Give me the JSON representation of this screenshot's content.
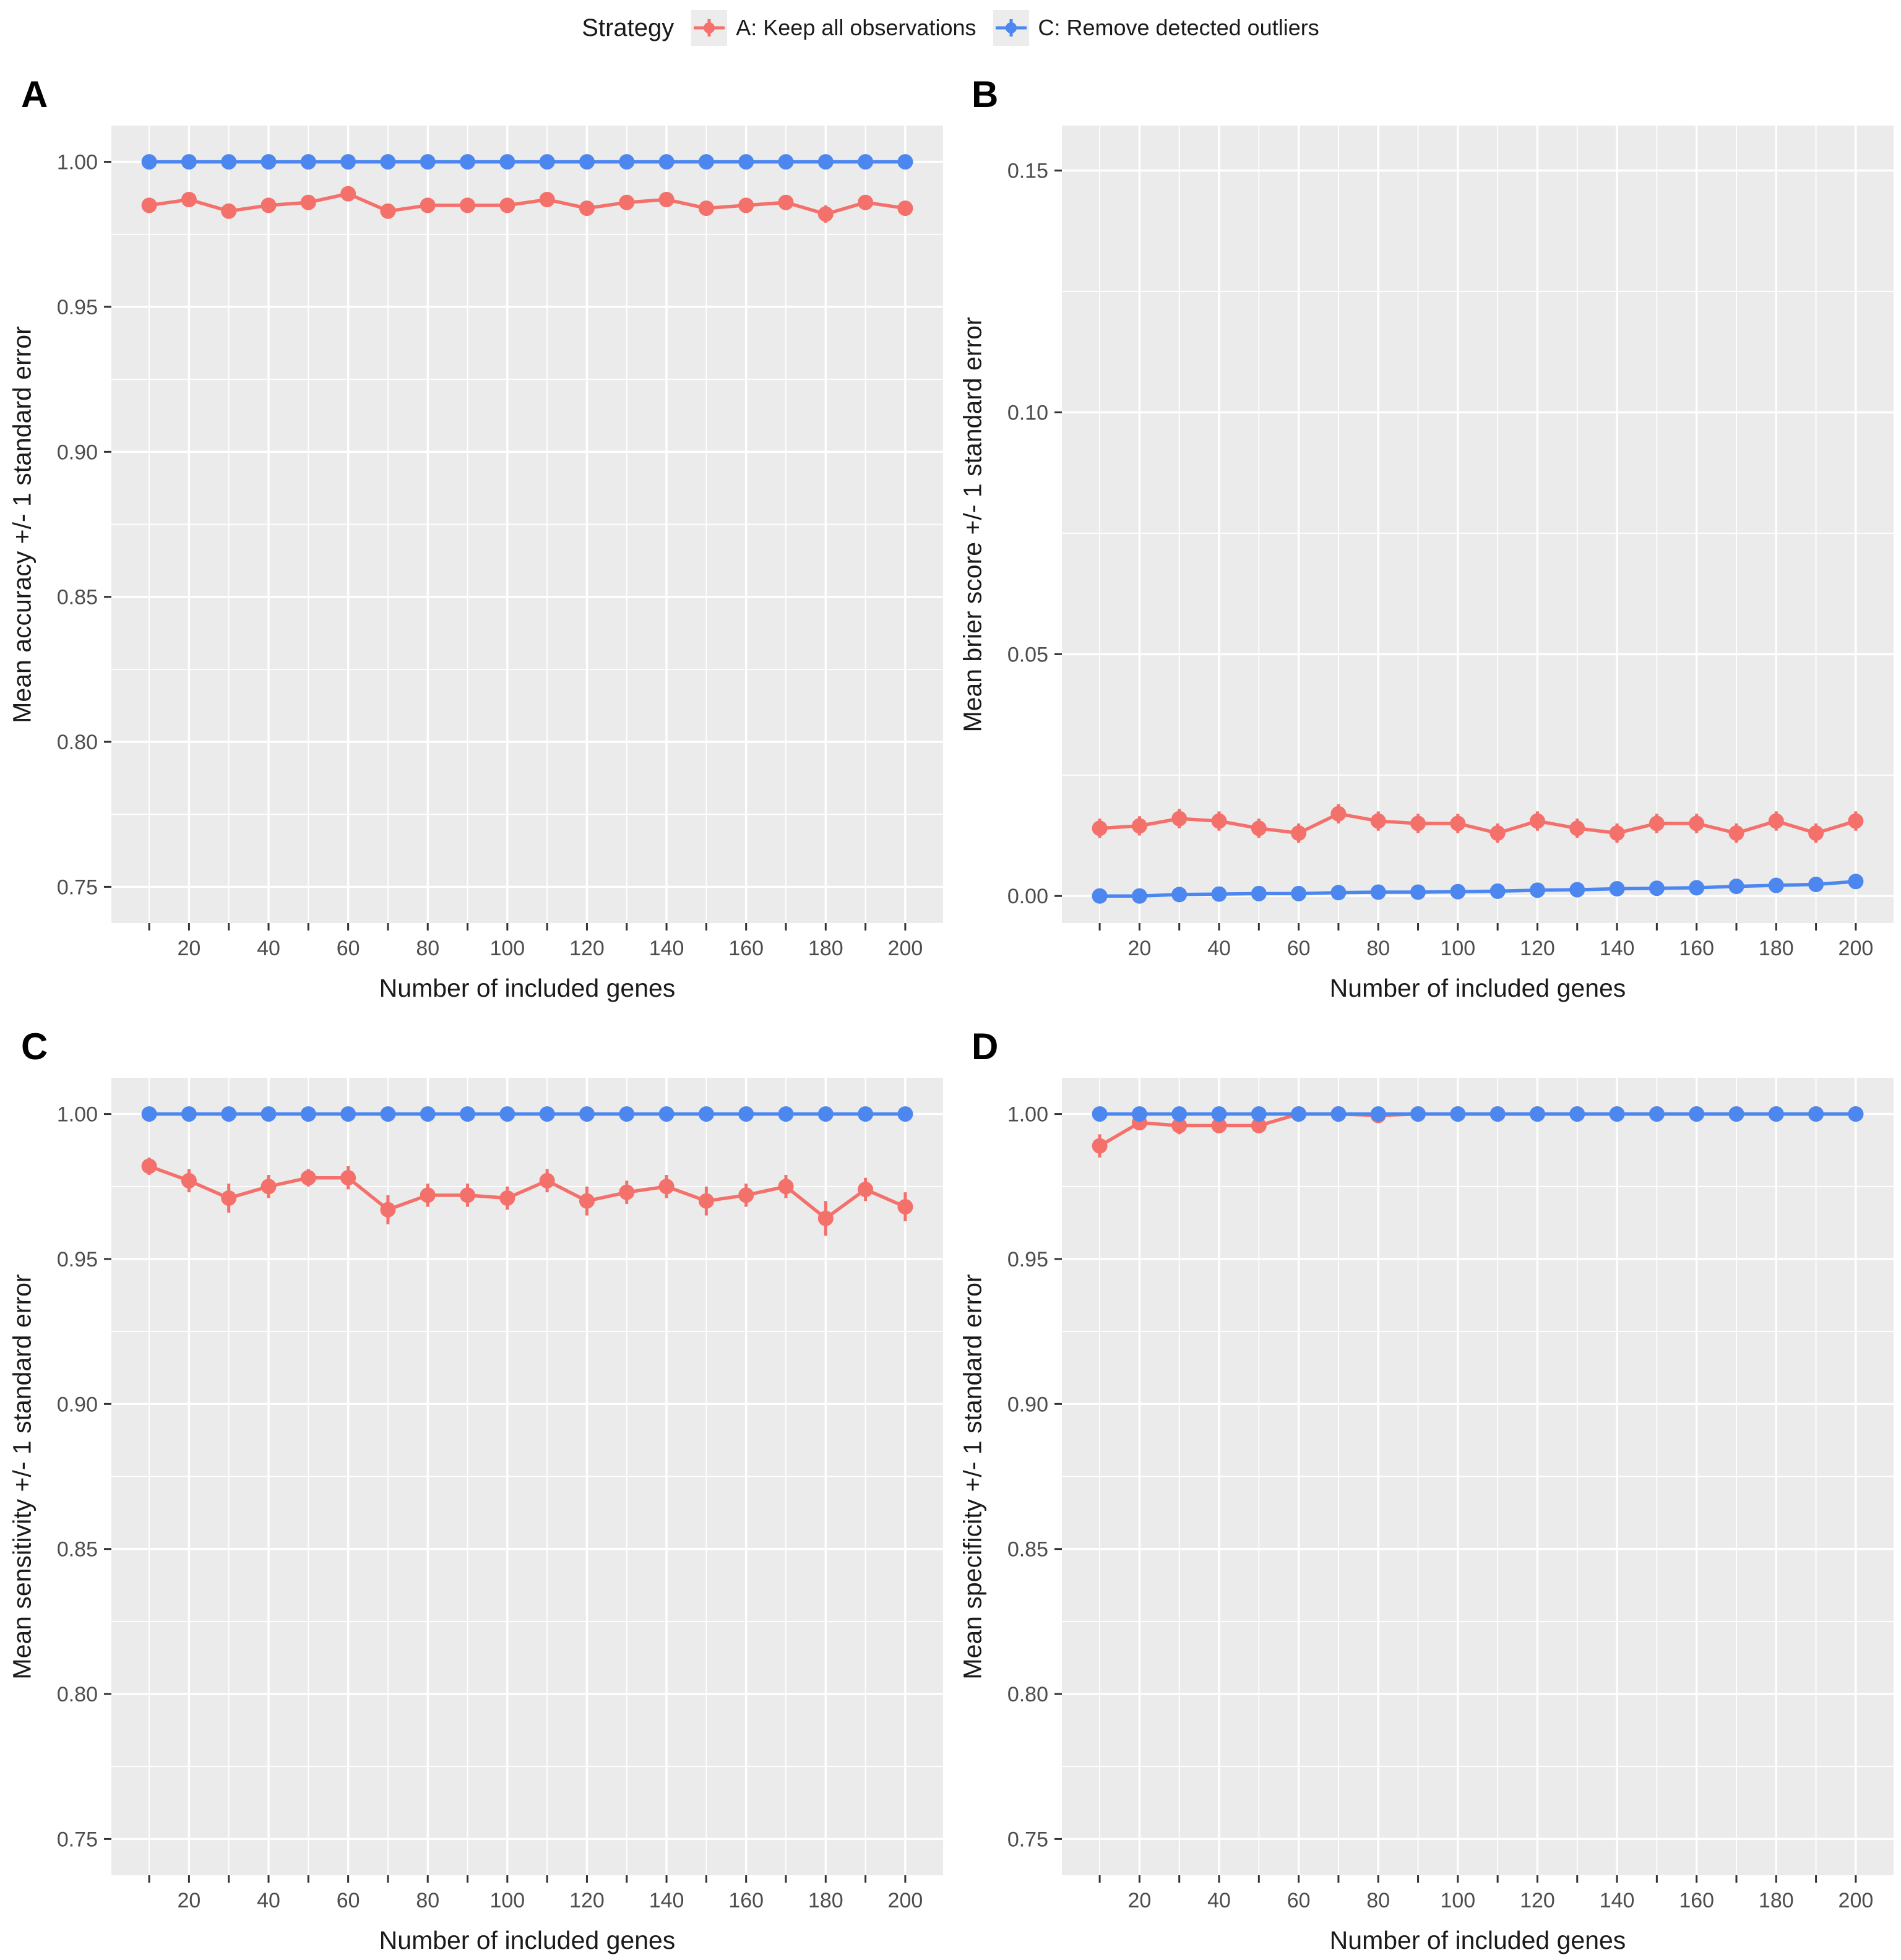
{
  "legend": {
    "title": "Strategy",
    "items": [
      {
        "label": "A: Keep all observations",
        "color": "#F4706B"
      },
      {
        "label": "C: Remove detected outliers",
        "color": "#4C87F0"
      }
    ]
  },
  "colors": {
    "panel_bg": "#EBEBEB",
    "grid": "#FFFFFF",
    "tick": "#333333",
    "tick_label": "#4D4D4D",
    "legend_key_bg": "#ECECEC"
  },
  "chart_data": [
    {
      "type": "line",
      "letter": "A",
      "ylabel": "Mean accuracy +/- 1 standard error",
      "xlabel": "Number of included genes",
      "x": [
        10,
        20,
        30,
        40,
        50,
        60,
        70,
        80,
        90,
        100,
        110,
        120,
        130,
        140,
        150,
        160,
        170,
        180,
        190,
        200
      ],
      "xlim": [
        0.5,
        209.5
      ],
      "ylim": [
        0.7375,
        1.0125
      ],
      "xticks_all": [
        10,
        20,
        30,
        40,
        50,
        60,
        70,
        80,
        90,
        100,
        110,
        120,
        130,
        140,
        150,
        160,
        170,
        180,
        190,
        200
      ],
      "xticks_major": [
        20,
        40,
        60,
        80,
        100,
        120,
        140,
        160,
        180,
        200
      ],
      "xtick_labels": [
        "20",
        "40",
        "60",
        "80",
        "100",
        "120",
        "140",
        "160",
        "180",
        "200"
      ],
      "xticks_minor": [
        10,
        30,
        50,
        70,
        90,
        110,
        130,
        150,
        170,
        190
      ],
      "yticks": {
        "values": [
          0.75,
          0.8,
          0.85,
          0.9,
          0.95,
          1.0
        ],
        "labels": [
          "0.75",
          "0.80",
          "0.85",
          "0.90",
          "0.95",
          "1.00"
        ]
      },
      "yticks_minor": [
        0.775,
        0.825,
        0.875,
        0.925,
        0.975
      ],
      "series": [
        {
          "name": "A: Keep all observations",
          "color": "#F4706B",
          "values": [
            0.985,
            0.987,
            0.983,
            0.985,
            0.986,
            0.989,
            0.983,
            0.985,
            0.985,
            0.985,
            0.987,
            0.984,
            0.986,
            0.987,
            0.984,
            0.985,
            0.986,
            0.982,
            0.986,
            0.984
          ],
          "se": [
            0.002,
            0.002,
            0.002,
            0.002,
            0.002,
            0.002,
            0.002,
            0.002,
            0.002,
            0.002,
            0.002,
            0.002,
            0.002,
            0.002,
            0.002,
            0.002,
            0.002,
            0.003,
            0.002,
            0.002
          ]
        },
        {
          "name": "C: Remove detected outliers",
          "color": "#4C87F0",
          "values": [
            1.0,
            1.0,
            1.0,
            1.0,
            1.0,
            1.0,
            1.0,
            1.0,
            1.0,
            1.0,
            1.0,
            1.0,
            1.0,
            1.0,
            1.0,
            1.0,
            1.0,
            1.0,
            1.0,
            1.0
          ],
          "se": [
            0.001,
            0.001,
            0.001,
            0.001,
            0.001,
            0.001,
            0.001,
            0.001,
            0.001,
            0.001,
            0.001,
            0.001,
            0.001,
            0.001,
            0.001,
            0.001,
            0.001,
            0.001,
            0.001,
            0.001
          ]
        }
      ]
    },
    {
      "type": "line",
      "letter": "B",
      "ylabel": "Mean brier score +/- 1 standard error",
      "xlabel": "Number of included genes",
      "x": [
        10,
        20,
        30,
        40,
        50,
        60,
        70,
        80,
        90,
        100,
        110,
        120,
        130,
        140,
        150,
        160,
        170,
        180,
        190,
        200
      ],
      "xlim": [
        0.5,
        209.5
      ],
      "ylim": [
        -0.0056,
        0.1593
      ],
      "xticks_all": [
        10,
        20,
        30,
        40,
        50,
        60,
        70,
        80,
        90,
        100,
        110,
        120,
        130,
        140,
        150,
        160,
        170,
        180,
        190,
        200
      ],
      "xticks_major": [
        20,
        40,
        60,
        80,
        100,
        120,
        140,
        160,
        180,
        200
      ],
      "xtick_labels": [
        "20",
        "40",
        "60",
        "80",
        "100",
        "120",
        "140",
        "160",
        "180",
        "200"
      ],
      "xticks_minor": [
        10,
        30,
        50,
        70,
        90,
        110,
        130,
        150,
        170,
        190
      ],
      "yticks": {
        "values": [
          0.0,
          0.05,
          0.1,
          0.15
        ],
        "labels": [
          "0.00",
          "0.05",
          "0.10",
          "0.15"
        ]
      },
      "yticks_minor": [
        0.025,
        0.075,
        0.125
      ],
      "series": [
        {
          "name": "A: Keep all observations",
          "color": "#F4706B",
          "values": [
            0.014,
            0.0145,
            0.016,
            0.0155,
            0.014,
            0.013,
            0.017,
            0.0155,
            0.015,
            0.015,
            0.013,
            0.0155,
            0.014,
            0.013,
            0.015,
            0.015,
            0.013,
            0.0155,
            0.013,
            0.0155
          ],
          "se": [
            0.002,
            0.002,
            0.002,
            0.002,
            0.002,
            0.002,
            0.002,
            0.002,
            0.002,
            0.002,
            0.002,
            0.002,
            0.002,
            0.002,
            0.002,
            0.002,
            0.002,
            0.002,
            0.002,
            0.002
          ]
        },
        {
          "name": "C: Remove detected outliers",
          "color": "#4C87F0",
          "values": [
            0.0,
            0.0,
            0.0003,
            0.0004,
            0.0005,
            0.0005,
            0.0007,
            0.0008,
            0.0008,
            0.0009,
            0.001,
            0.0012,
            0.0013,
            0.0015,
            0.0016,
            0.0017,
            0.002,
            0.0022,
            0.0024,
            0.003
          ],
          "se": [
            0.0005,
            0.0005,
            0.0005,
            0.0005,
            0.0005,
            0.0005,
            0.0005,
            0.0005,
            0.0005,
            0.0005,
            0.0005,
            0.0005,
            0.0005,
            0.0005,
            0.0005,
            0.0005,
            0.0005,
            0.0005,
            0.0005,
            0.0005
          ]
        }
      ]
    },
    {
      "type": "line",
      "letter": "C",
      "ylabel": "Mean sensitivity +/- 1 standard error",
      "xlabel": "Number of included genes",
      "x": [
        10,
        20,
        30,
        40,
        50,
        60,
        70,
        80,
        90,
        100,
        110,
        120,
        130,
        140,
        150,
        160,
        170,
        180,
        190,
        200
      ],
      "xlim": [
        0.5,
        209.5
      ],
      "ylim": [
        0.7375,
        1.0125
      ],
      "xticks_all": [
        10,
        20,
        30,
        40,
        50,
        60,
        70,
        80,
        90,
        100,
        110,
        120,
        130,
        140,
        150,
        160,
        170,
        180,
        190,
        200
      ],
      "xticks_major": [
        20,
        40,
        60,
        80,
        100,
        120,
        140,
        160,
        180,
        200
      ],
      "xtick_labels": [
        "20",
        "40",
        "60",
        "80",
        "100",
        "120",
        "140",
        "160",
        "180",
        "200"
      ],
      "xticks_minor": [
        10,
        30,
        50,
        70,
        90,
        110,
        130,
        150,
        170,
        190
      ],
      "yticks": {
        "values": [
          0.75,
          0.8,
          0.85,
          0.9,
          0.95,
          1.0
        ],
        "labels": [
          "0.75",
          "0.80",
          "0.85",
          "0.90",
          "0.95",
          "1.00"
        ]
      },
      "yticks_minor": [
        0.775,
        0.825,
        0.875,
        0.925,
        0.975
      ],
      "series": [
        {
          "name": "A: Keep all observations",
          "color": "#F4706B",
          "values": [
            0.982,
            0.977,
            0.971,
            0.975,
            0.978,
            0.978,
            0.967,
            0.972,
            0.972,
            0.971,
            0.977,
            0.97,
            0.973,
            0.975,
            0.97,
            0.972,
            0.975,
            0.964,
            0.974,
            0.968
          ],
          "se": [
            0.003,
            0.004,
            0.005,
            0.004,
            0.003,
            0.004,
            0.005,
            0.004,
            0.004,
            0.004,
            0.004,
            0.005,
            0.004,
            0.004,
            0.005,
            0.004,
            0.004,
            0.006,
            0.004,
            0.005
          ]
        },
        {
          "name": "C: Remove detected outliers",
          "color": "#4C87F0",
          "values": [
            1.0,
            1.0,
            1.0,
            1.0,
            1.0,
            1.0,
            1.0,
            1.0,
            1.0,
            1.0,
            1.0,
            1.0,
            1.0,
            1.0,
            1.0,
            1.0,
            1.0,
            1.0,
            1.0,
            1.0
          ],
          "se": [
            0.0015,
            0.0015,
            0.0015,
            0.0015,
            0.0015,
            0.0015,
            0.0015,
            0.0015,
            0.0015,
            0.0015,
            0.0015,
            0.0015,
            0.0015,
            0.0015,
            0.0015,
            0.0015,
            0.0015,
            0.0015,
            0.0015,
            0.0015
          ]
        }
      ]
    },
    {
      "type": "line",
      "letter": "D",
      "ylabel": "Mean specificity +/- 1 standard error",
      "xlabel": "Number of included genes",
      "x": [
        10,
        20,
        30,
        40,
        50,
        60,
        70,
        80,
        90,
        100,
        110,
        120,
        130,
        140,
        150,
        160,
        170,
        180,
        190,
        200
      ],
      "xlim": [
        0.5,
        209.5
      ],
      "ylim": [
        0.7375,
        1.0125
      ],
      "xticks_all": [
        10,
        20,
        30,
        40,
        50,
        60,
        70,
        80,
        90,
        100,
        110,
        120,
        130,
        140,
        150,
        160,
        170,
        180,
        190,
        200
      ],
      "xticks_major": [
        20,
        40,
        60,
        80,
        100,
        120,
        140,
        160,
        180,
        200
      ],
      "xtick_labels": [
        "20",
        "40",
        "60",
        "80",
        "100",
        "120",
        "140",
        "160",
        "180",
        "200"
      ],
      "xticks_minor": [
        10,
        30,
        50,
        70,
        90,
        110,
        130,
        150,
        170,
        190
      ],
      "yticks": {
        "values": [
          0.75,
          0.8,
          0.85,
          0.9,
          0.95,
          1.0
        ],
        "labels": [
          "0.75",
          "0.80",
          "0.85",
          "0.90",
          "0.95",
          "1.00"
        ]
      },
      "yticks_minor": [
        0.775,
        0.825,
        0.875,
        0.925,
        0.975
      ],
      "series": [
        {
          "name": "A: Keep all observations",
          "color": "#F4706B",
          "values": [
            0.989,
            0.997,
            0.996,
            0.996,
            0.996,
            1.0,
            1.0,
            0.9995,
            1.0,
            1.0,
            1.0,
            1.0,
            1.0,
            1.0,
            1.0,
            1.0,
            1.0,
            1.0,
            1.0,
            1.0
          ],
          "se": [
            0.004,
            0.002,
            0.003,
            0.002,
            0.002,
            0.001,
            0.001,
            0.001,
            0.0005,
            0.0005,
            0.0005,
            0.0005,
            0.0005,
            0.0005,
            0.0005,
            0.0005,
            0.0005,
            0.0005,
            0.0005,
            0.0005
          ]
        },
        {
          "name": "C: Remove detected outliers",
          "color": "#4C87F0",
          "values": [
            1.0,
            1.0,
            1.0,
            1.0,
            1.0,
            1.0,
            1.0,
            1.0,
            1.0,
            1.0,
            1.0,
            1.0,
            1.0,
            1.0,
            1.0,
            1.0,
            1.0,
            1.0,
            1.0,
            1.0
          ],
          "se": [
            0.001,
            0.001,
            0.001,
            0.001,
            0.001,
            0.001,
            0.001,
            0.001,
            0.001,
            0.001,
            0.001,
            0.001,
            0.001,
            0.001,
            0.001,
            0.001,
            0.001,
            0.001,
            0.001,
            0.001
          ]
        }
      ]
    }
  ]
}
